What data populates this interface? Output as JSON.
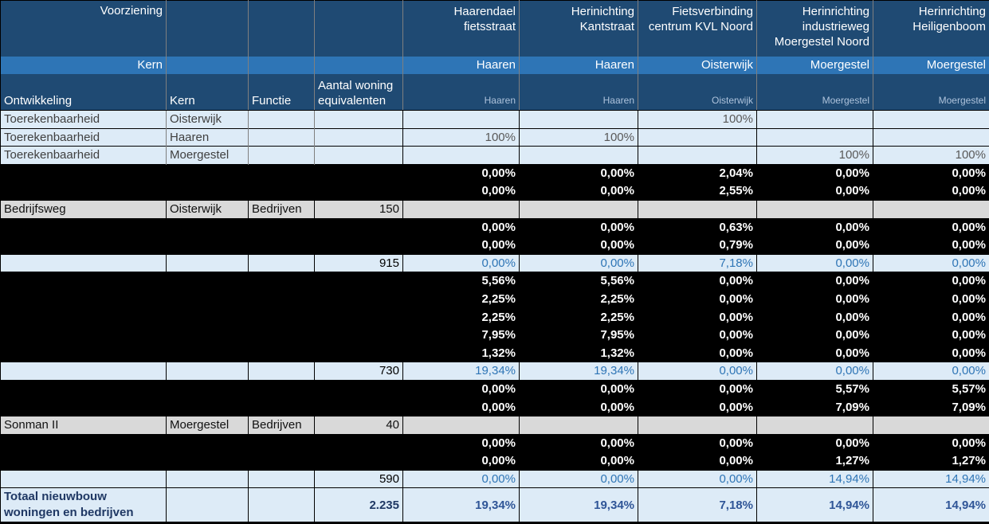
{
  "table": {
    "header": {
      "voorziening_label": "Voorziening",
      "kern_band_label": "Kern",
      "projects": [
        "Haarendael fietsstraat",
        "Herinichting Kantstraat",
        "Fietsverbinding centrum KVL Noord",
        "Herinrichting industrieweg Moergestel Noord",
        "Herinrichting Heiligenboom"
      ],
      "project_kernen": [
        "Haaren",
        "Haaren",
        "Oisterwijk",
        "Moergestel",
        "Moergestel"
      ],
      "col_labels": [
        "Ontwikkeling",
        "Kern",
        "Functie",
        "Aantal woning equivalenten"
      ],
      "col_kernen_small": [
        "Haaren",
        "Haaren",
        "Oisterwijk",
        "Moergestel",
        "Moergestel"
      ]
    },
    "rows": [
      {
        "type": "lightblue",
        "ontwikkeling": "Toerekenbaarheid",
        "kern": "Oisterwijk",
        "functie": "",
        "aantal": "",
        "values": [
          "",
          "",
          "100%",
          "",
          ""
        ]
      },
      {
        "type": "lightblue",
        "ontwikkeling": "Toerekenbaarheid",
        "kern": "Haaren",
        "functie": "",
        "aantal": "",
        "values": [
          "100%",
          "100%",
          "",
          "",
          ""
        ]
      },
      {
        "type": "lightblue",
        "ontwikkeling": "Toerekenbaarheid",
        "kern": "Moergestel",
        "functie": "",
        "aantal": "",
        "values": [
          "",
          "",
          "",
          "100%",
          "100%"
        ]
      },
      {
        "type": "black",
        "ontwikkeling": "",
        "kern": "",
        "functie": "",
        "aantal": "",
        "values": [
          "0,00%",
          "0,00%",
          "2,04%",
          "0,00%",
          "0,00%"
        ]
      },
      {
        "type": "black",
        "ontwikkeling": "",
        "kern": "",
        "functie": "",
        "aantal": "",
        "values": [
          "0,00%",
          "0,00%",
          "2,55%",
          "0,00%",
          "0,00%"
        ]
      },
      {
        "type": "gray",
        "ontwikkeling": "Bedrijfsweg",
        "kern": "Oisterwijk",
        "functie": "Bedrijven",
        "aantal": "150",
        "values": [
          "",
          "",
          "",
          "",
          ""
        ]
      },
      {
        "type": "black",
        "ontwikkeling": "",
        "kern": "",
        "functie": "",
        "aantal": "",
        "values": [
          "0,00%",
          "0,00%",
          "0,63%",
          "0,00%",
          "0,00%"
        ]
      },
      {
        "type": "black",
        "ontwikkeling": "",
        "kern": "",
        "functie": "",
        "aantal": "",
        "values": [
          "0,00%",
          "0,00%",
          "0,79%",
          "0,00%",
          "0,00%"
        ]
      },
      {
        "type": "subtotal",
        "ontwikkeling": "",
        "kern": "",
        "functie": "",
        "aantal": "915",
        "values": [
          "0,00%",
          "0,00%",
          "7,18%",
          "0,00%",
          "0,00%"
        ]
      },
      {
        "type": "black",
        "ontwikkeling": "",
        "kern": "",
        "functie": "",
        "aantal": "",
        "values": [
          "5,56%",
          "5,56%",
          "0,00%",
          "0,00%",
          "0,00%"
        ]
      },
      {
        "type": "black",
        "ontwikkeling": "",
        "kern": "",
        "functie": "",
        "aantal": "",
        "values": [
          "2,25%",
          "2,25%",
          "0,00%",
          "0,00%",
          "0,00%"
        ]
      },
      {
        "type": "black",
        "ontwikkeling": "",
        "kern": "",
        "functie": "",
        "aantal": "",
        "values": [
          "2,25%",
          "2,25%",
          "0,00%",
          "0,00%",
          "0,00%"
        ]
      },
      {
        "type": "black",
        "ontwikkeling": "",
        "kern": "",
        "functie": "",
        "aantal": "",
        "values": [
          "7,95%",
          "7,95%",
          "0,00%",
          "0,00%",
          "0,00%"
        ]
      },
      {
        "type": "black",
        "ontwikkeling": "",
        "kern": "",
        "functie": "",
        "aantal": "",
        "values": [
          "1,32%",
          "1,32%",
          "0,00%",
          "0,00%",
          "0,00%"
        ]
      },
      {
        "type": "subtotal",
        "ontwikkeling": "",
        "kern": "",
        "functie": "",
        "aantal": "730",
        "values": [
          "19,34%",
          "19,34%",
          "0,00%",
          "0,00%",
          "0,00%"
        ]
      },
      {
        "type": "black",
        "ontwikkeling": "",
        "kern": "",
        "functie": "",
        "aantal": "",
        "values": [
          "0,00%",
          "0,00%",
          "0,00%",
          "5,57%",
          "5,57%"
        ]
      },
      {
        "type": "black",
        "ontwikkeling": "",
        "kern": "",
        "functie": "",
        "aantal": "",
        "values": [
          "0,00%",
          "0,00%",
          "0,00%",
          "7,09%",
          "7,09%"
        ]
      },
      {
        "type": "gray",
        "ontwikkeling": "Sonman II",
        "kern": "Moergestel",
        "functie": "Bedrijven",
        "aantal": "40",
        "values": [
          "",
          "",
          "",
          "",
          ""
        ]
      },
      {
        "type": "black",
        "ontwikkeling": "",
        "kern": "",
        "functie": "",
        "aantal": "",
        "values": [
          "0,00%",
          "0,00%",
          "0,00%",
          "0,00%",
          "0,00%"
        ]
      },
      {
        "type": "black",
        "ontwikkeling": "",
        "kern": "",
        "functie": "",
        "aantal": "",
        "values": [
          "0,00%",
          "0,00%",
          "0,00%",
          "1,27%",
          "1,27%"
        ]
      },
      {
        "type": "subtotal",
        "ontwikkeling": "",
        "kern": "",
        "functie": "",
        "aantal": "590",
        "values": [
          "0,00%",
          "0,00%",
          "0,00%",
          "14,94%",
          "14,94%"
        ]
      }
    ],
    "total_row": {
      "label": "Totaal nieuwbouw woningen en bedrijven",
      "kern": "",
      "functie": "",
      "aantal": "2.235",
      "values": [
        "19,34%",
        "19,34%",
        "7,18%",
        "14,94%",
        "14,94%"
      ]
    }
  },
  "colors": {
    "header_dark": "#1F4A73",
    "band_blue": "#2E75B6",
    "light_row": "#DDEBF7",
    "gray_row": "#D9D9D9",
    "black_row": "#000000",
    "value_blue": "#2E75B6",
    "total_navy": "#1F3864",
    "total_value_blue": "#2F5597",
    "muted_label": "#AEC3DC"
  }
}
